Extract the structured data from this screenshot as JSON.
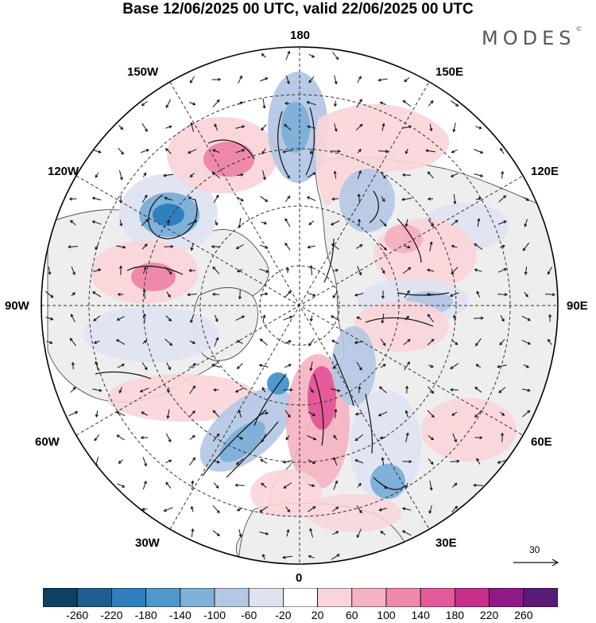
{
  "title": "Base 12/06/2025 00 UTC, valid 22/06/2025 00 UTC",
  "logo": {
    "text": "MODES",
    "mark": "©"
  },
  "map": {
    "projection": "north polar stereographic",
    "longitude_labels": {
      "top": "180",
      "bottom": "0",
      "left": "90W",
      "right": "90E",
      "upper_left_1": "150W",
      "upper_left_2": "120W",
      "upper_right_1": "150E",
      "upper_right_2": "120E",
      "lower_left_1": "60W",
      "lower_left_2": "30W",
      "lower_right_1": "60E",
      "lower_right_2": "30E"
    },
    "colors": {
      "land": "#eeeeee",
      "coast": "#4d4d4d",
      "grid": "#333333",
      "arrow": "#111111"
    }
  },
  "vector_scale": {
    "value": "30"
  },
  "colorbar": {
    "ticks": [
      "-260",
      "-220",
      "-180",
      "-140",
      "-100",
      "-60",
      "-20",
      "20",
      "60",
      "100",
      "140",
      "180",
      "220",
      "260"
    ],
    "colors": [
      "#0f3f62",
      "#1f5f8f",
      "#2f7fbf",
      "#4f97cc",
      "#7fb1d9",
      "#b4c7e4",
      "#dfe3f1",
      "#ffffff",
      "#f9d5d9",
      "#f5b2c1",
      "#ee89aa",
      "#e55a98",
      "#c9308a",
      "#8f1a87",
      "#5a1a78"
    ]
  }
}
